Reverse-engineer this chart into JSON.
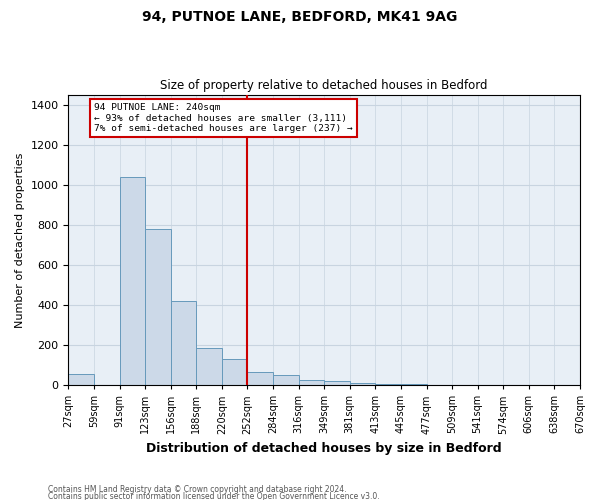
{
  "title1": "94, PUTNOE LANE, BEDFORD, MK41 9AG",
  "title2": "Size of property relative to detached houses in Bedford",
  "xlabel": "Distribution of detached houses by size in Bedford",
  "ylabel": "Number of detached properties",
  "bar_labels": [
    "27sqm",
    "59sqm",
    "91sqm",
    "123sqm",
    "156sqm",
    "188sqm",
    "220sqm",
    "252sqm",
    "284sqm",
    "316sqm",
    "349sqm",
    "381sqm",
    "413sqm",
    "445sqm",
    "477sqm",
    "509sqm",
    "541sqm",
    "574sqm",
    "606sqm",
    "638sqm",
    "670sqm"
  ],
  "bar_values": [
    57,
    0,
    1040,
    780,
    420,
    185,
    130,
    65,
    50,
    25,
    20,
    12,
    8,
    5,
    2,
    0,
    0,
    0,
    0,
    0
  ],
  "bar_color": "#ccd9e8",
  "bar_edge_color": "#6699bb",
  "ylim": [
    0,
    1450
  ],
  "yticks": [
    0,
    200,
    400,
    600,
    800,
    1000,
    1200,
    1400
  ],
  "red_line_bin_index": 7,
  "annotation_line1": "94 PUTNOE LANE: 240sqm",
  "annotation_line2": "← 93% of detached houses are smaller (3,111)",
  "annotation_line3": "7% of semi-detached houses are larger (237) →",
  "red_line_color": "#cc0000",
  "annotation_box_facecolor": "#ffffff",
  "annotation_box_edgecolor": "#cc0000",
  "grid_color": "#c8d4e0",
  "background_color": "#e8eff6",
  "footer1": "Contains HM Land Registry data © Crown copyright and database right 2024.",
  "footer2": "Contains public sector information licensed under the Open Government Licence v3.0.",
  "title1_fontsize": 10,
  "title2_fontsize": 8.5,
  "xlabel_fontsize": 9,
  "ylabel_fontsize": 8,
  "tick_fontsize": 7,
  "ytick_fontsize": 8,
  "footer_fontsize": 5.5
}
